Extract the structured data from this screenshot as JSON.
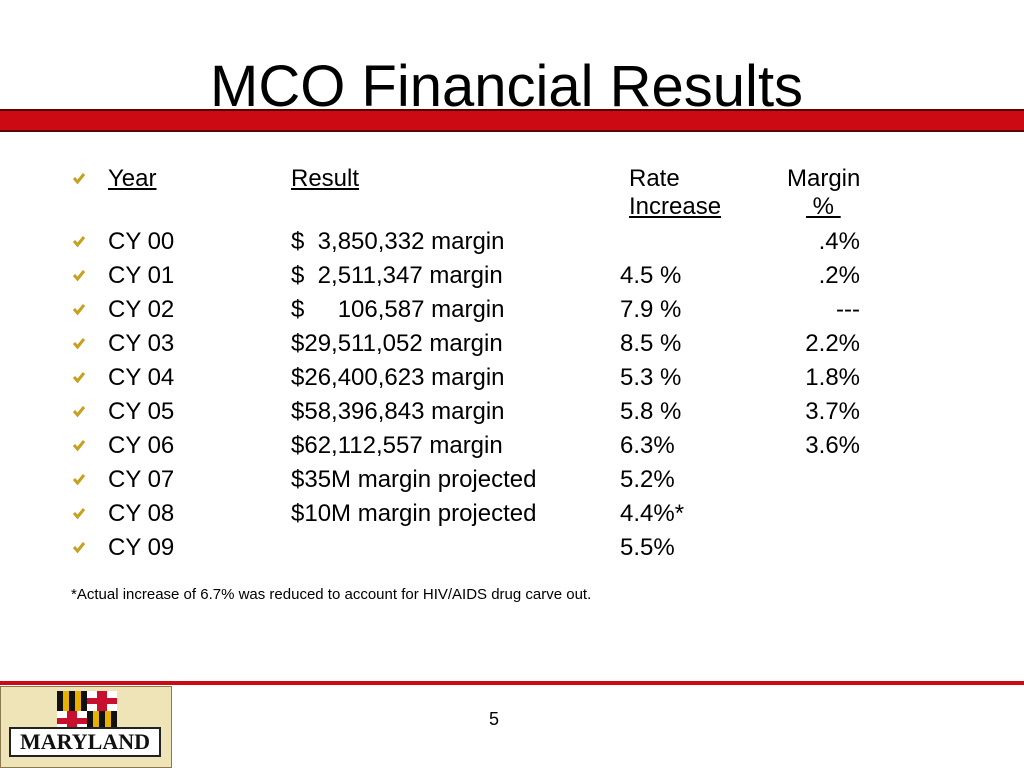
{
  "title": "MCO Financial Results",
  "header": {
    "year": "Year",
    "result": "Result",
    "rate_line1": "Rate",
    "rate_line2": "Increase",
    "margin_line1": "Margin",
    "margin_line2": " % "
  },
  "rows": [
    {
      "year": "CY 00",
      "result": "$  3,850,332 margin",
      "rate": "",
      "margin": ".4%"
    },
    {
      "year": "CY 01",
      "result": "$  2,511,347 margin",
      "rate": "4.5 %",
      "margin": ".2%"
    },
    {
      "year": "CY 02",
      "result": "$     106,587 margin",
      "rate": "7.9 %",
      "margin": "---"
    },
    {
      "year": "CY 03",
      "result": "$29,511,052 margin",
      "rate": "8.5 %",
      "margin": "2.2%"
    },
    {
      "year": "CY 04",
      "result": "$26,400,623 margin",
      "rate": "5.3 %",
      "margin": "1.8%"
    },
    {
      "year": "CY 05",
      "result": "$58,396,843 margin",
      "rate": "5.8 %",
      "margin": "3.7%"
    },
    {
      "year": "CY 06",
      "result": "$62,112,557 margin",
      "rate": "6.3%",
      "margin": "3.6%"
    },
    {
      "year": "CY 07",
      "result": "$35M margin projected",
      "rate": "5.2%",
      "margin": ""
    },
    {
      "year": "CY 08",
      "result": "$10M margin projected",
      "rate": "4.4%*",
      "margin": ""
    },
    {
      "year": "CY 09",
      "result": "",
      "rate": "5.5%",
      "margin": ""
    }
  ],
  "footnote": "*Actual increase of 6.7% was reduced to account for HIV/AIDS drug carve out.",
  "page_number": "5",
  "logo_text": "MARYLAND",
  "colors": {
    "accent": "#cc0a14",
    "check": "#c8a020"
  },
  "icons": {
    "bullet": "checkmark-icon",
    "logo": "maryland-flag-icon"
  }
}
